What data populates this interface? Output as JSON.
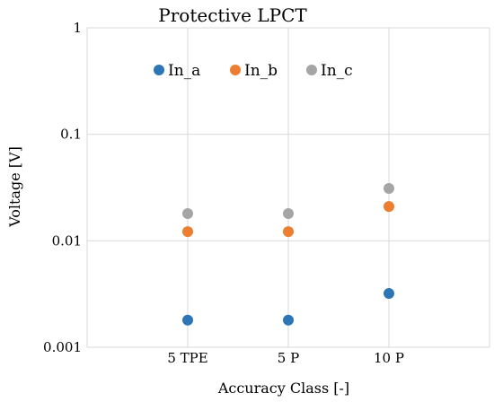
{
  "chart_data": {
    "type": "scatter",
    "title": "Protective LPCT",
    "xlabel": "Accuracy Class [-]",
    "ylabel": "Voltage [V]",
    "categories": [
      "5 TPE",
      "5 P",
      "10 P"
    ],
    "y_scale": "log",
    "ylim": [
      0.001,
      1
    ],
    "y_ticks": [
      {
        "value": 1,
        "label": "1"
      },
      {
        "value": 0.1,
        "label": "0.1"
      },
      {
        "value": 0.01,
        "label": "0.01"
      },
      {
        "value": 0.001,
        "label": "0.001"
      }
    ],
    "grid": true,
    "legend_position": "top-inside",
    "series": [
      {
        "name": "In_a",
        "color": "#2e75b6",
        "values": [
          0.0018,
          0.0018,
          0.0032
        ]
      },
      {
        "name": "In_b",
        "color": "#ed7d31",
        "values": [
          0.0122,
          0.0122,
          0.021
        ]
      },
      {
        "name": "In_c",
        "color": "#a5a5a5",
        "values": [
          0.018,
          0.018,
          0.031
        ]
      }
    ]
  }
}
